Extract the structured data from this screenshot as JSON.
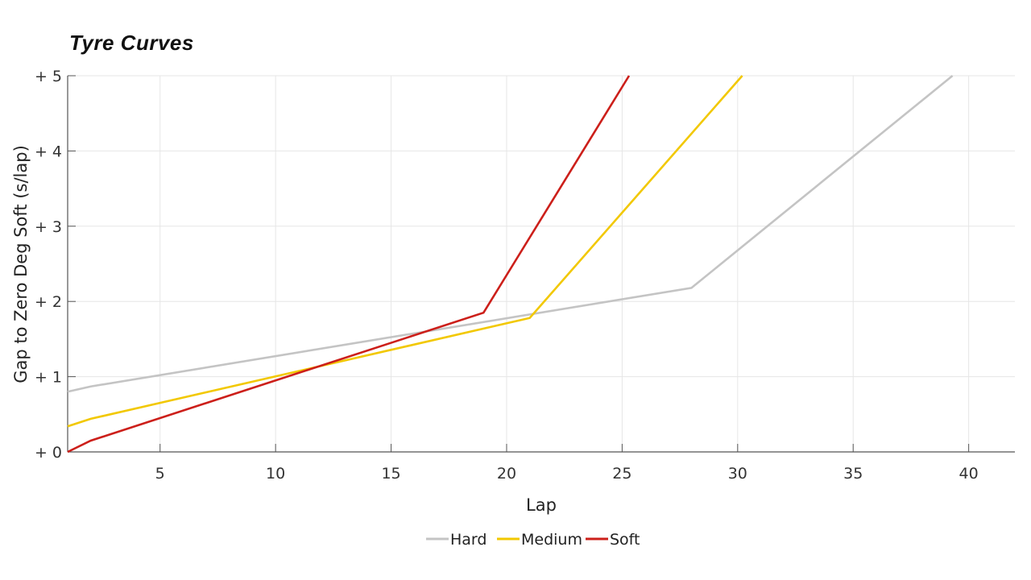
{
  "chart_data": {
    "type": "line",
    "title": "Tyre Curves",
    "xlabel": "Lap",
    "ylabel": "Gap to Zero Deg Soft (s/lap)",
    "xlim": [
      1,
      42
    ],
    "ylim": [
      0,
      5
    ],
    "x_ticks": [
      5,
      10,
      15,
      20,
      25,
      30,
      35,
      40
    ],
    "x_tick_labels": [
      "5",
      "10",
      "15",
      "20",
      "25",
      "30",
      "35",
      "40"
    ],
    "y_ticks": [
      0,
      1,
      2,
      3,
      4,
      5
    ],
    "y_tick_labels": [
      "+ 0",
      "+ 1",
      "+ 2",
      "+ 3",
      "+ 4",
      "+ 5"
    ],
    "grid": true,
    "legend_position": "bottom-center",
    "series": [
      {
        "name": "Hard",
        "color": "#c4c4c4",
        "x": [
          1,
          2,
          28,
          39.3
        ],
        "y": [
          0.8,
          0.87,
          2.18,
          5.0
        ]
      },
      {
        "name": "Medium",
        "color": "#f2c800",
        "x": [
          1,
          2,
          21,
          30.2
        ],
        "y": [
          0.34,
          0.44,
          1.78,
          5.0
        ]
      },
      {
        "name": "Soft",
        "color": "#cc1f1a",
        "x": [
          1,
          2,
          19,
          25.3
        ],
        "y": [
          0.0,
          0.15,
          1.85,
          5.0
        ]
      }
    ]
  }
}
